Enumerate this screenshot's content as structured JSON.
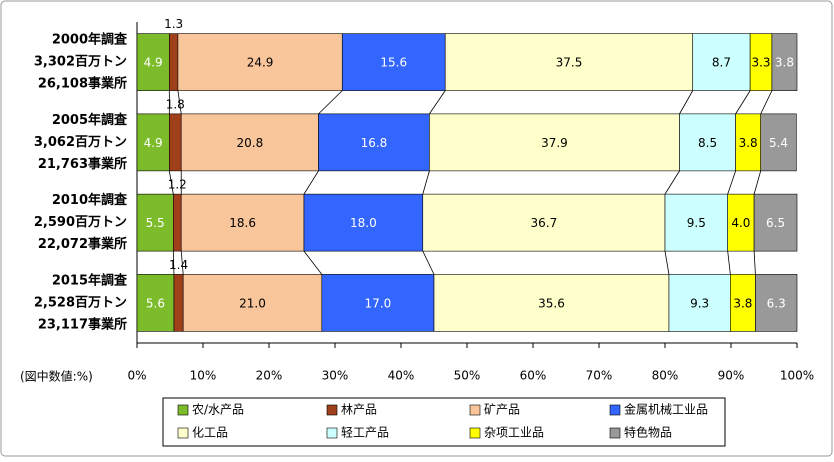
{
  "chart_data": {
    "type": "stacked-bar-horizontal",
    "categories": [
      [
        "2000年調査",
        "3,302百万トン",
        "26,108事業所"
      ],
      [
        "2005年調査",
        "3,062百万トン",
        "21,763事業所"
      ],
      [
        "2010年調査",
        "2,590百万トン",
        "22,072事業所"
      ],
      [
        "2015年調査",
        "2,528百万トン",
        "23,117事業所"
      ]
    ],
    "series": [
      {
        "name": "农/水产品",
        "color": "#7cbb2a",
        "values": [
          4.9,
          4.9,
          5.5,
          5.6
        ]
      },
      {
        "name": "林产品",
        "color": "#a0401a",
        "values": [
          1.3,
          1.8,
          1.2,
          1.4
        ]
      },
      {
        "name": "矿产品",
        "color": "#f9c59b",
        "values": [
          24.9,
          20.8,
          18.6,
          21
        ],
        "value_labels": [
          "24.9",
          "20.8",
          "18.6",
          "21.0"
        ]
      },
      {
        "name": "金属机械工业品",
        "color": "#3366ff",
        "values": [
          15.6,
          16.8,
          18,
          17
        ],
        "value_labels": [
          "15.6",
          "16.8",
          "18.0",
          "17.0"
        ]
      },
      {
        "name": "化工品",
        "color": "#ffffcc",
        "values": [
          37.5,
          37.9,
          36.7,
          35.6
        ]
      },
      {
        "name": "轻工产品",
        "color": "#ccffff",
        "values": [
          8.7,
          8.5,
          9.5,
          9.3
        ]
      },
      {
        "name": "杂项工业品",
        "color": "#ffff00",
        "values": [
          3.3,
          3.8,
          4,
          3.8
        ],
        "value_labels": [
          "3.3",
          "3.8",
          "4.0",
          "3.8"
        ]
      },
      {
        "name": "特色物品",
        "color": "#999999",
        "values": [
          3.8,
          5.4,
          6.5,
          6.3
        ]
      }
    ],
    "xlabel": "(図中数値:%)",
    "xlim": [
      0,
      100
    ],
    "xticks": [
      {
        "value": 0,
        "label": "0%"
      },
      {
        "value": 10,
        "label": "10%"
      },
      {
        "value": 20,
        "label": "20%"
      },
      {
        "value": 30,
        "label": "30%"
      },
      {
        "value": 40,
        "label": "40%"
      },
      {
        "value": 50,
        "label": "50%"
      },
      {
        "value": 60,
        "label": "60%"
      },
      {
        "value": 70,
        "label": "70%"
      },
      {
        "value": 80,
        "label": "80%"
      },
      {
        "value": 90,
        "label": "90%"
      },
      {
        "value": 100,
        "label": "100%"
      }
    ]
  }
}
